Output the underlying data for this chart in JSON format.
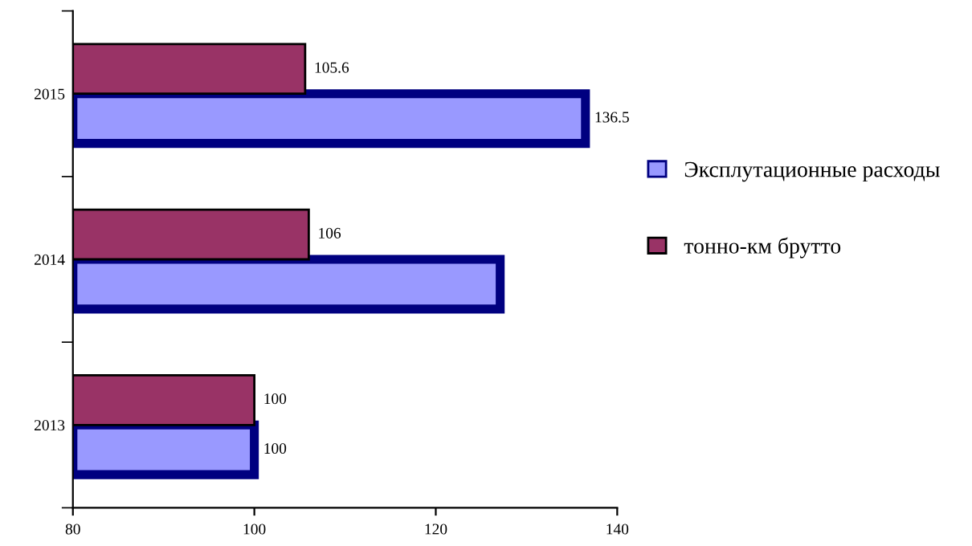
{
  "chart_data": {
    "type": "bar",
    "orientation": "horizontal",
    "categories": [
      "2015",
      "2014",
      "2013"
    ],
    "series": [
      {
        "name": "Эксплутационные расходы",
        "color": "#9999ff",
        "values": [
          136.5,
          127.1,
          100
        ],
        "value_labels": [
          "136.5",
          null,
          "100"
        ]
      },
      {
        "name": "тонно-км брутто",
        "color": "#993366",
        "values": [
          105.6,
          106,
          100
        ],
        "value_labels": [
          "105.6",
          "106",
          "100"
        ]
      }
    ],
    "xlim": [
      80,
      140
    ],
    "xticks": [
      80,
      100,
      120,
      140
    ],
    "grid": false,
    "legend": "right"
  }
}
